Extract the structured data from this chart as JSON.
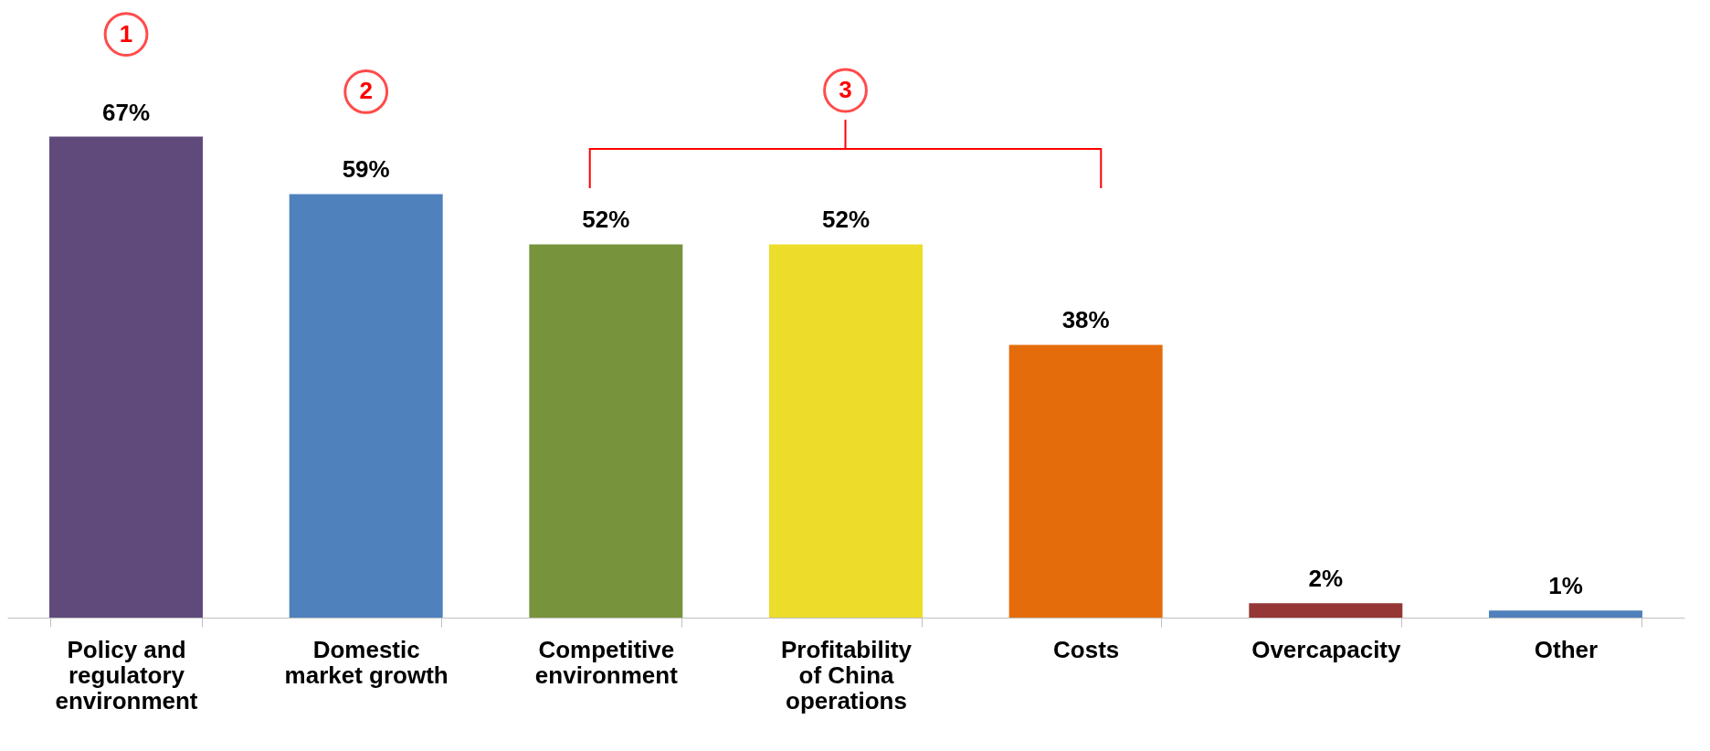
{
  "chart_data": {
    "type": "bar",
    "categories": [
      "Policy and regulatory environment",
      "Domestic market growth",
      "Competitive environment",
      "Profitability of China operations",
      "Costs",
      "Overcapacity",
      "Other"
    ],
    "values": [
      67,
      59,
      52,
      52,
      38,
      2,
      1
    ],
    "colors": [
      "#604a7b",
      "#4f81bd",
      "#77933c",
      "#ebdd29",
      "#e46c0a",
      "#953735",
      "#4f81bd"
    ],
    "value_labels": [
      "67%",
      "59%",
      "52%",
      "52%",
      "38%",
      "2%",
      "1%"
    ],
    "annotations": [
      "1",
      "2",
      "3"
    ],
    "grid": false
  }
}
